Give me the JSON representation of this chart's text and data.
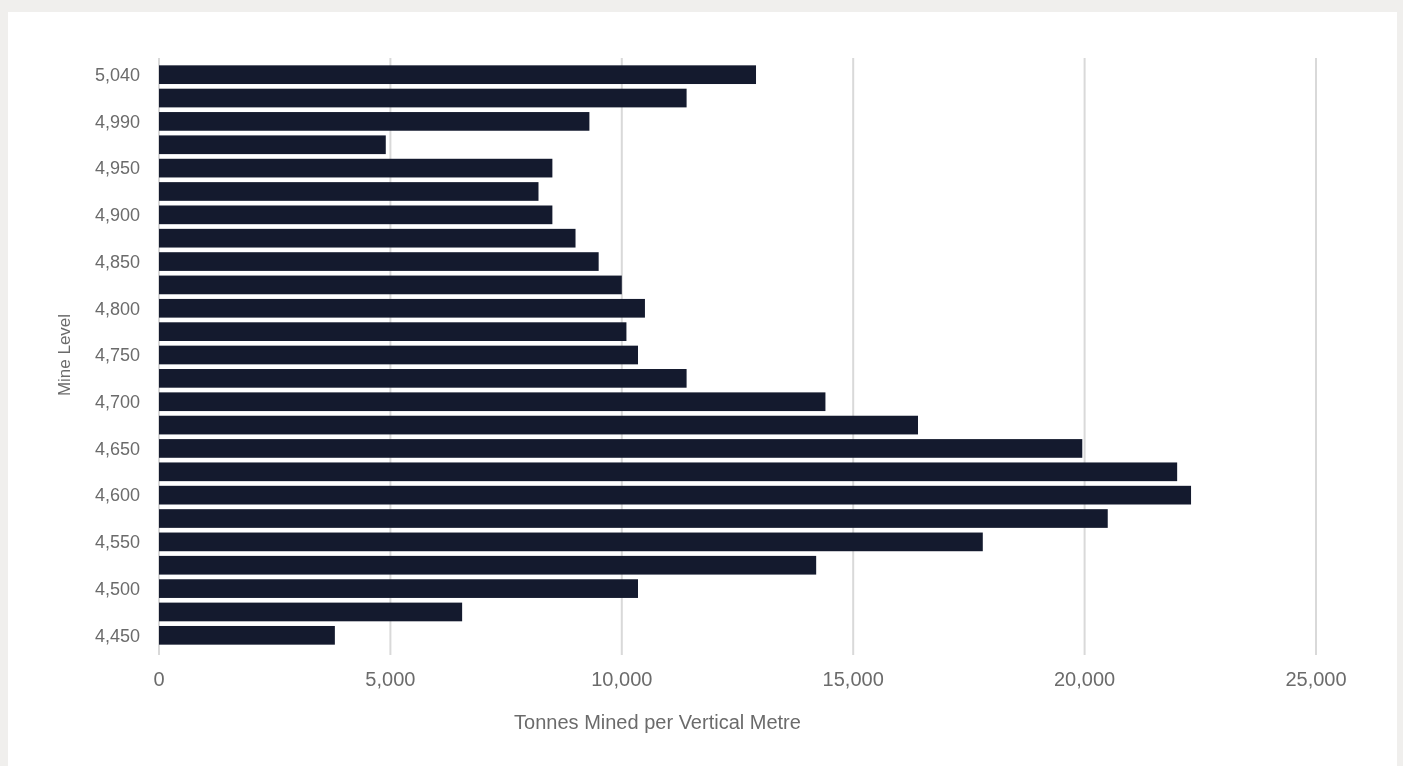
{
  "chart_data": {
    "type": "bar",
    "orientation": "horizontal",
    "xlabel": "Tonnes Mined per Vertical Metre",
    "ylabel": "Mine Level",
    "categories": [
      "5,040",
      null,
      "4,990",
      null,
      "4,950",
      null,
      "4,900",
      null,
      "4,850",
      null,
      "4,800",
      null,
      "4,750",
      null,
      "4,700",
      null,
      "4,650",
      null,
      "4,600",
      null,
      "4,550",
      null,
      "4,500",
      null,
      "4,450"
    ],
    "values": [
      12900,
      11400,
      9300,
      4900,
      8500,
      8200,
      8500,
      9000,
      9500,
      10000,
      10500,
      10100,
      10350,
      11400,
      14400,
      16400,
      19950,
      22000,
      22300,
      20500,
      17800,
      14200,
      10350,
      6550,
      3800
    ],
    "color": "#141a2e",
    "xlim": [
      0,
      25000
    ],
    "xticks": [
      {
        "value": 0,
        "label": "0"
      },
      {
        "value": 5000,
        "label": "5,000"
      },
      {
        "value": 10000,
        "label": "10,000"
      },
      {
        "value": 15000,
        "label": "15,000"
      },
      {
        "value": 20000,
        "label": "20,000"
      },
      {
        "value": 25000,
        "label": "25,000"
      }
    ],
    "grid": "x"
  }
}
